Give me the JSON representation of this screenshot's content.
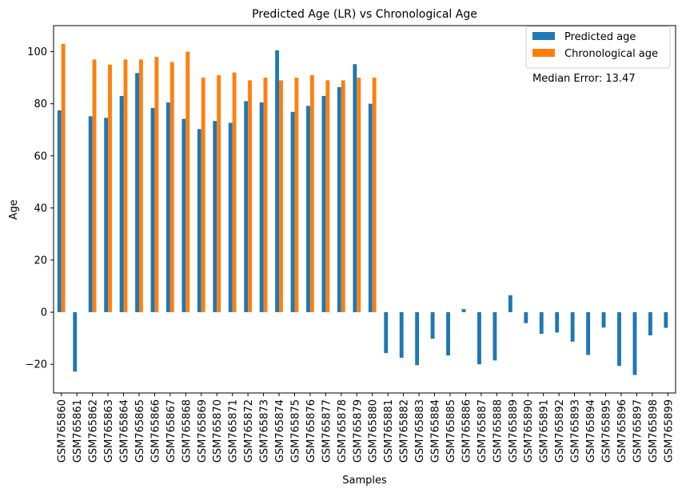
{
  "chart_data": {
    "type": "bar",
    "title": "Predicted Age (LR) vs Chronological Age",
    "xlabel": "Samples",
    "ylabel": "Age",
    "ylim": [
      -31,
      110
    ],
    "yticks": [
      -20,
      0,
      20,
      40,
      60,
      80,
      100
    ],
    "grid": false,
    "legend_position": "top-right",
    "annotation": "Median Error: 13.47",
    "categories": [
      "GSM765860",
      "GSM765861",
      "GSM765862",
      "GSM765863",
      "GSM765864",
      "GSM765865",
      "GSM765866",
      "GSM765867",
      "GSM765868",
      "GSM765869",
      "GSM765870",
      "GSM765871",
      "GSM765872",
      "GSM765873",
      "GSM765874",
      "GSM765875",
      "GSM765876",
      "GSM765877",
      "GSM765878",
      "GSM765879",
      "GSM765880",
      "GSM765881",
      "GSM765882",
      "GSM765883",
      "GSM765884",
      "GSM765885",
      "GSM765886",
      "GSM765887",
      "GSM765888",
      "GSM765889",
      "GSM765890",
      "GSM765891",
      "GSM765892",
      "GSM765893",
      "GSM765894",
      "GSM765895",
      "GSM765896",
      "GSM765897",
      "GSM765898",
      "GSM765899"
    ],
    "series": [
      {
        "name": "Predicted age",
        "color": "#1f77b4",
        "values": [
          77.5,
          -22.8,
          75.2,
          74.6,
          83.0,
          91.8,
          78.4,
          80.5,
          74.2,
          70.3,
          73.4,
          72.7,
          81.0,
          80.5,
          100.5,
          76.9,
          79.2,
          83.0,
          86.4,
          95.2,
          80.0,
          -15.7,
          -17.5,
          -20.3,
          -10.2,
          -16.6,
          1.2,
          -20.0,
          -18.5,
          6.5,
          -4.2,
          -8.3,
          -7.8,
          -11.3,
          -16.4,
          -5.9,
          -20.6,
          -24.1,
          -8.9,
          -6.0
        ]
      },
      {
        "name": "Chronological age",
        "color": "#ff7f0e",
        "values": [
          103,
          null,
          97,
          95,
          97,
          97,
          98,
          96,
          100,
          90,
          91,
          92,
          89,
          90,
          89,
          90,
          91,
          89,
          89,
          90,
          90,
          null,
          null,
          null,
          null,
          null,
          null,
          null,
          null,
          null,
          null,
          null,
          null,
          null,
          null,
          null,
          null,
          null,
          null,
          null
        ]
      }
    ]
  }
}
